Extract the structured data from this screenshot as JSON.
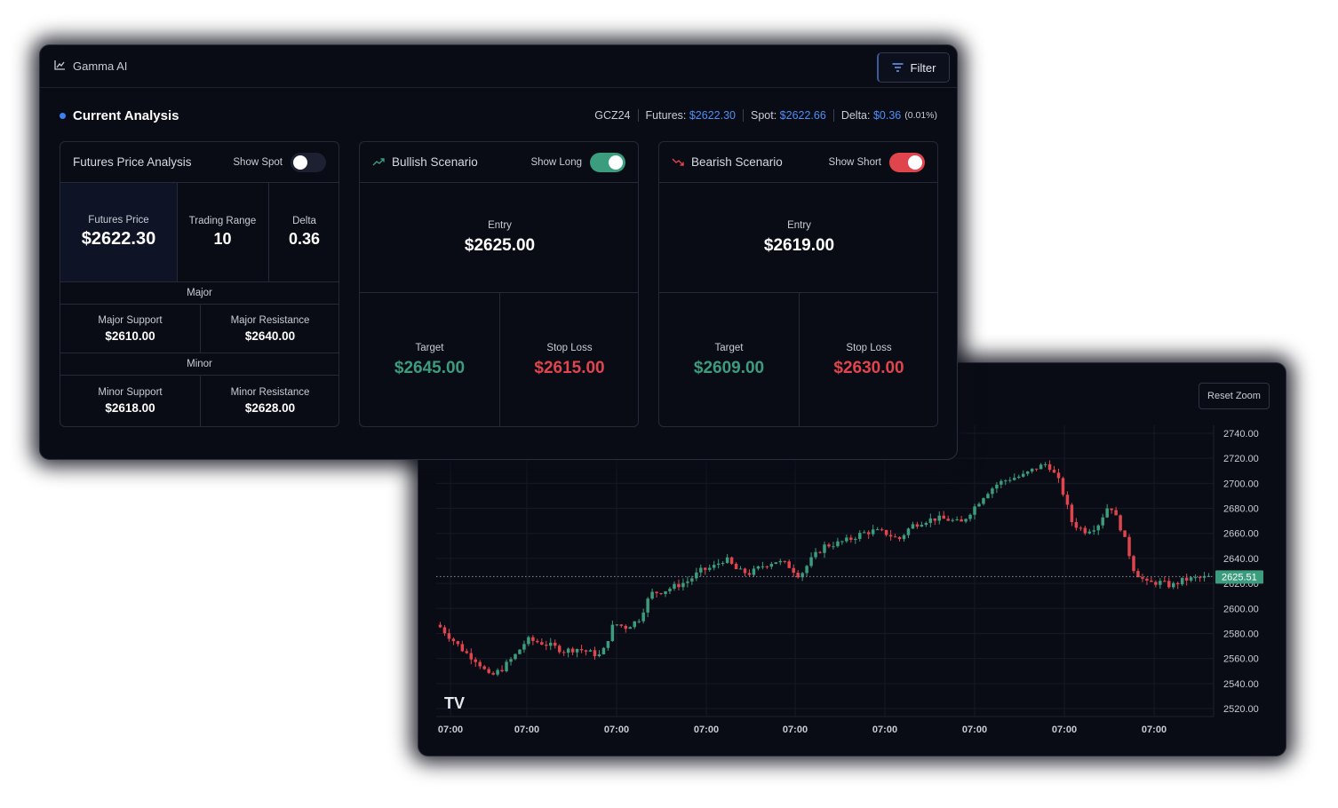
{
  "app": {
    "title": "Gamma AI"
  },
  "toolbar": {
    "filter_label": "Filter"
  },
  "analysis": {
    "title": "Current Analysis",
    "symbol": "GCZ24",
    "futures_label": "Futures:",
    "futures_value": "$2622.30",
    "spot_label": "Spot:",
    "spot_value": "$2622.66",
    "delta_label": "Delta:",
    "delta_value": "$0.36",
    "delta_pct": "(0.01%)"
  },
  "futures_card": {
    "title": "Futures Price Analysis",
    "toggle_label": "Show Spot",
    "futures_price_label": "Futures Price",
    "futures_price_value": "$2622.30",
    "trading_range_label": "Trading Range",
    "trading_range_value": "10",
    "delta_label": "Delta",
    "delta_value": "0.36",
    "major_label": "Major",
    "major_support_label": "Major Support",
    "major_support_value": "$2610.00",
    "major_resistance_label": "Major Resistance",
    "major_resistance_value": "$2640.00",
    "minor_label": "Minor",
    "minor_support_label": "Minor Support",
    "minor_support_value": "$2618.00",
    "minor_resistance_label": "Minor Resistance",
    "minor_resistance_value": "$2628.00"
  },
  "bullish_card": {
    "title": "Bullish Scenario",
    "toggle_label": "Show Long",
    "entry_label": "Entry",
    "entry_value": "$2625.00",
    "target_label": "Target",
    "target_value": "$2645.00",
    "stop_label": "Stop Loss",
    "stop_value": "$2615.00"
  },
  "bearish_card": {
    "title": "Bearish Scenario",
    "toggle_label": "Show Short",
    "entry_label": "Entry",
    "entry_value": "$2619.00",
    "target_label": "Target",
    "target_value": "$2609.00",
    "stop_label": "Stop Loss",
    "stop_value": "$2630.00"
  },
  "chart": {
    "reset_zoom_label": "Reset Zoom",
    "logo_text": "TV",
    "colors": {
      "up": "#3b9c7e",
      "down": "#e0454d",
      "grid": "#161a26",
      "axis_text": "#c9ccd6"
    }
  },
  "chart_data": {
    "type": "line",
    "x_tick_labels": [
      "07:00",
      "07:00",
      "07:00",
      "07:00",
      "07:00",
      "07:00",
      "07:00",
      "07:00",
      "07:00"
    ],
    "y_tick_labels": [
      "2740.00",
      "2720.00",
      "2700.00",
      "2680.00",
      "2660.00",
      "2640.00",
      "2620.00",
      "2600.00",
      "2580.00",
      "2560.00",
      "2540.00",
      "2520.00"
    ],
    "ylim": [
      2510,
      2745
    ],
    "current_price": 2625.51,
    "current_price_label": "2625.51",
    "series": [
      {
        "values": [
          2585,
          2575,
          2565,
          2558,
          2545,
          2552,
          2562,
          2575,
          2573,
          2570,
          2566,
          2568,
          2565,
          2562,
          2588,
          2585,
          2591,
          2612,
          2614,
          2618,
          2622,
          2630,
          2633,
          2640,
          2630,
          2628,
          2634,
          2638,
          2635,
          2626,
          2640,
          2650,
          2652,
          2655,
          2660,
          2662,
          2660,
          2655,
          2666,
          2670,
          2672,
          2671,
          2668,
          2680,
          2692,
          2700,
          2704,
          2706,
          2712,
          2716,
          2700,
          2668,
          2662,
          2666,
          2684,
          2662,
          2630,
          2620,
          2621,
          2618,
          2623,
          2624,
          2625
        ]
      }
    ],
    "grid": true
  }
}
